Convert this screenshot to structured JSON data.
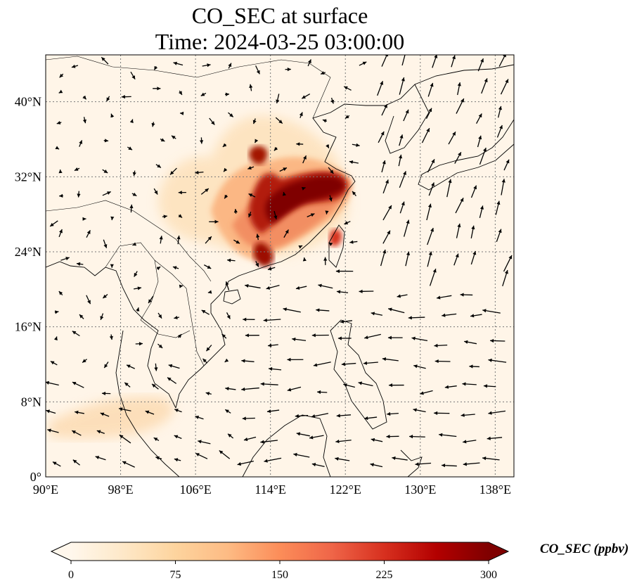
{
  "title": {
    "line1": "CO_SEC at surface",
    "line2": "Time: 2024-03-25 03:00:00"
  },
  "map": {
    "extent": {
      "lon": [
        90,
        140
      ],
      "lat": [
        0,
        45
      ]
    },
    "lon_ticks": [
      {
        "value": 90,
        "label": "90°E"
      },
      {
        "value": 98,
        "label": "98°E"
      },
      {
        "value": 106,
        "label": "106°E"
      },
      {
        "value": 114,
        "label": "114°E"
      },
      {
        "value": 122,
        "label": "122°E"
      },
      {
        "value": 130,
        "label": "130°E"
      },
      {
        "value": 138,
        "label": "138°E"
      }
    ],
    "lat_ticks": [
      {
        "value": 0,
        "label": "0°"
      },
      {
        "value": 8,
        "label": "8°N"
      },
      {
        "value": 16,
        "label": "16°N"
      },
      {
        "value": 24,
        "label": "24°N"
      },
      {
        "value": 32,
        "label": "32°N"
      },
      {
        "value": 40,
        "label": "40°N"
      }
    ],
    "gridlines": true
  },
  "colorbar": {
    "label": "CO_SEC (ppbv)",
    "range": [
      0,
      300
    ],
    "ticks": [
      "0",
      "75",
      "150",
      "225",
      "300"
    ],
    "colors": [
      "#fff7ec",
      "#fee8c8",
      "#fdd49e",
      "#fdbb84",
      "#fc8d59",
      "#ef6548",
      "#d7301f",
      "#b30000",
      "#7f0000"
    ],
    "extend": "both"
  }
}
